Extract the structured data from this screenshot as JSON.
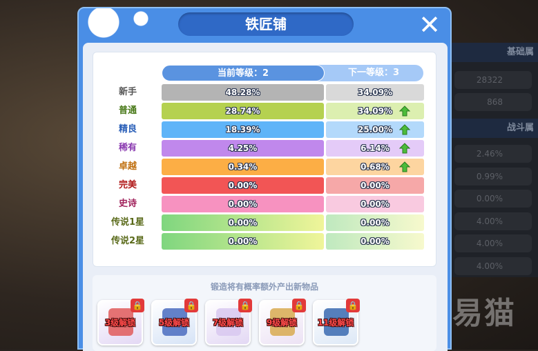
{
  "title": "铁匠铺",
  "header": {
    "current": "当前等级：2",
    "next": "下一等级：3"
  },
  "rows": [
    {
      "label": "新手",
      "current": "48.28%",
      "next": "34.09%",
      "up": false,
      "label_color": "#555555",
      "cur_color": "#b4b4b4",
      "next_color": "#d9d9d9"
    },
    {
      "label": "普通",
      "current": "28.74%",
      "next": "34.09%",
      "up": true,
      "label_color": "#4a7a1a",
      "cur_color": "#b5d150",
      "next_color": "#dcefb0"
    },
    {
      "label": "精良",
      "current": "18.39%",
      "next": "25.00%",
      "up": true,
      "label_color": "#2a5fb8",
      "cur_color": "#5fb4f8",
      "next_color": "#b3d9fb"
    },
    {
      "label": "稀有",
      "current": "4.25%",
      "next": "6.14%",
      "up": true,
      "label_color": "#8a3ab0",
      "cur_color": "#c088ec",
      "next_color": "#e4cbf8"
    },
    {
      "label": "卓越",
      "current": "0.34%",
      "next": "0.68%",
      "up": true,
      "label_color": "#c07010",
      "cur_color": "#fcae45",
      "next_color": "#fdd5a0"
    },
    {
      "label": "完美",
      "current": "0.00%",
      "next": "0.00%",
      "up": false,
      "label_color": "#b01818",
      "cur_color": "#f25555",
      "next_color": "#f6a8a8"
    },
    {
      "label": "史诗",
      "current": "0.00%",
      "next": "0.00%",
      "up": false,
      "label_color": "#a0205a",
      "cur_color": "#f792c0",
      "next_color": "#f9cae0"
    },
    {
      "label": "传说1星",
      "current": "0.00%",
      "next": "0.00%",
      "up": false,
      "label_color": "#5a6a1a",
      "cur_color": "linear-gradient(90deg,#7fd67f,#f0f59a)",
      "next_color": "linear-gradient(90deg,#bfe9bf,#f7f9cd)"
    },
    {
      "label": "传说2星",
      "current": "0.00%",
      "next": "0.00%",
      "up": false,
      "label_color": "#5a6a1a",
      "cur_color": "linear-gradient(90deg,#7fd67f,#f0f59a)",
      "next_color": "linear-gradient(90deg,#bfe9bf,#f7f9cd)"
    }
  ],
  "hint": "锻造将有概率额外产出新物品",
  "items": [
    {
      "unlock": "3级解锁",
      "icon": "card-icon",
      "bg": "#e3d8f4",
      "color": "#e05a5a"
    },
    {
      "unlock": "5级解锁",
      "icon": "book-icon",
      "bg": "#d6e3f6",
      "color": "#4a6cc0"
    },
    {
      "unlock": "7级解锁",
      "icon": "feather-icon",
      "bg": "#e3d8f4",
      "color": "#d8c8f0"
    },
    {
      "unlock": "9级解锁",
      "icon": "scroll-icon",
      "bg": "#ece2f4",
      "color": "#d8aa50"
    },
    {
      "unlock": "11级解锁",
      "icon": "scorpion-icon",
      "bg": "#dde8f6",
      "color": "#3a6ab0"
    }
  ],
  "background_panel": {
    "base_header": "基础属",
    "base_values": [
      "28322",
      "868"
    ],
    "combat_header": "战斗属",
    "combat_values": [
      "2.46%",
      "0.99%",
      "0.00%",
      "4.00%",
      "4.00%",
      "4.00%"
    ]
  },
  "watermark": "易猫",
  "colors": {
    "frame": "#4a8ee6",
    "title_pill": "#2f69c6",
    "up_arrow": "#4cbc3a"
  }
}
